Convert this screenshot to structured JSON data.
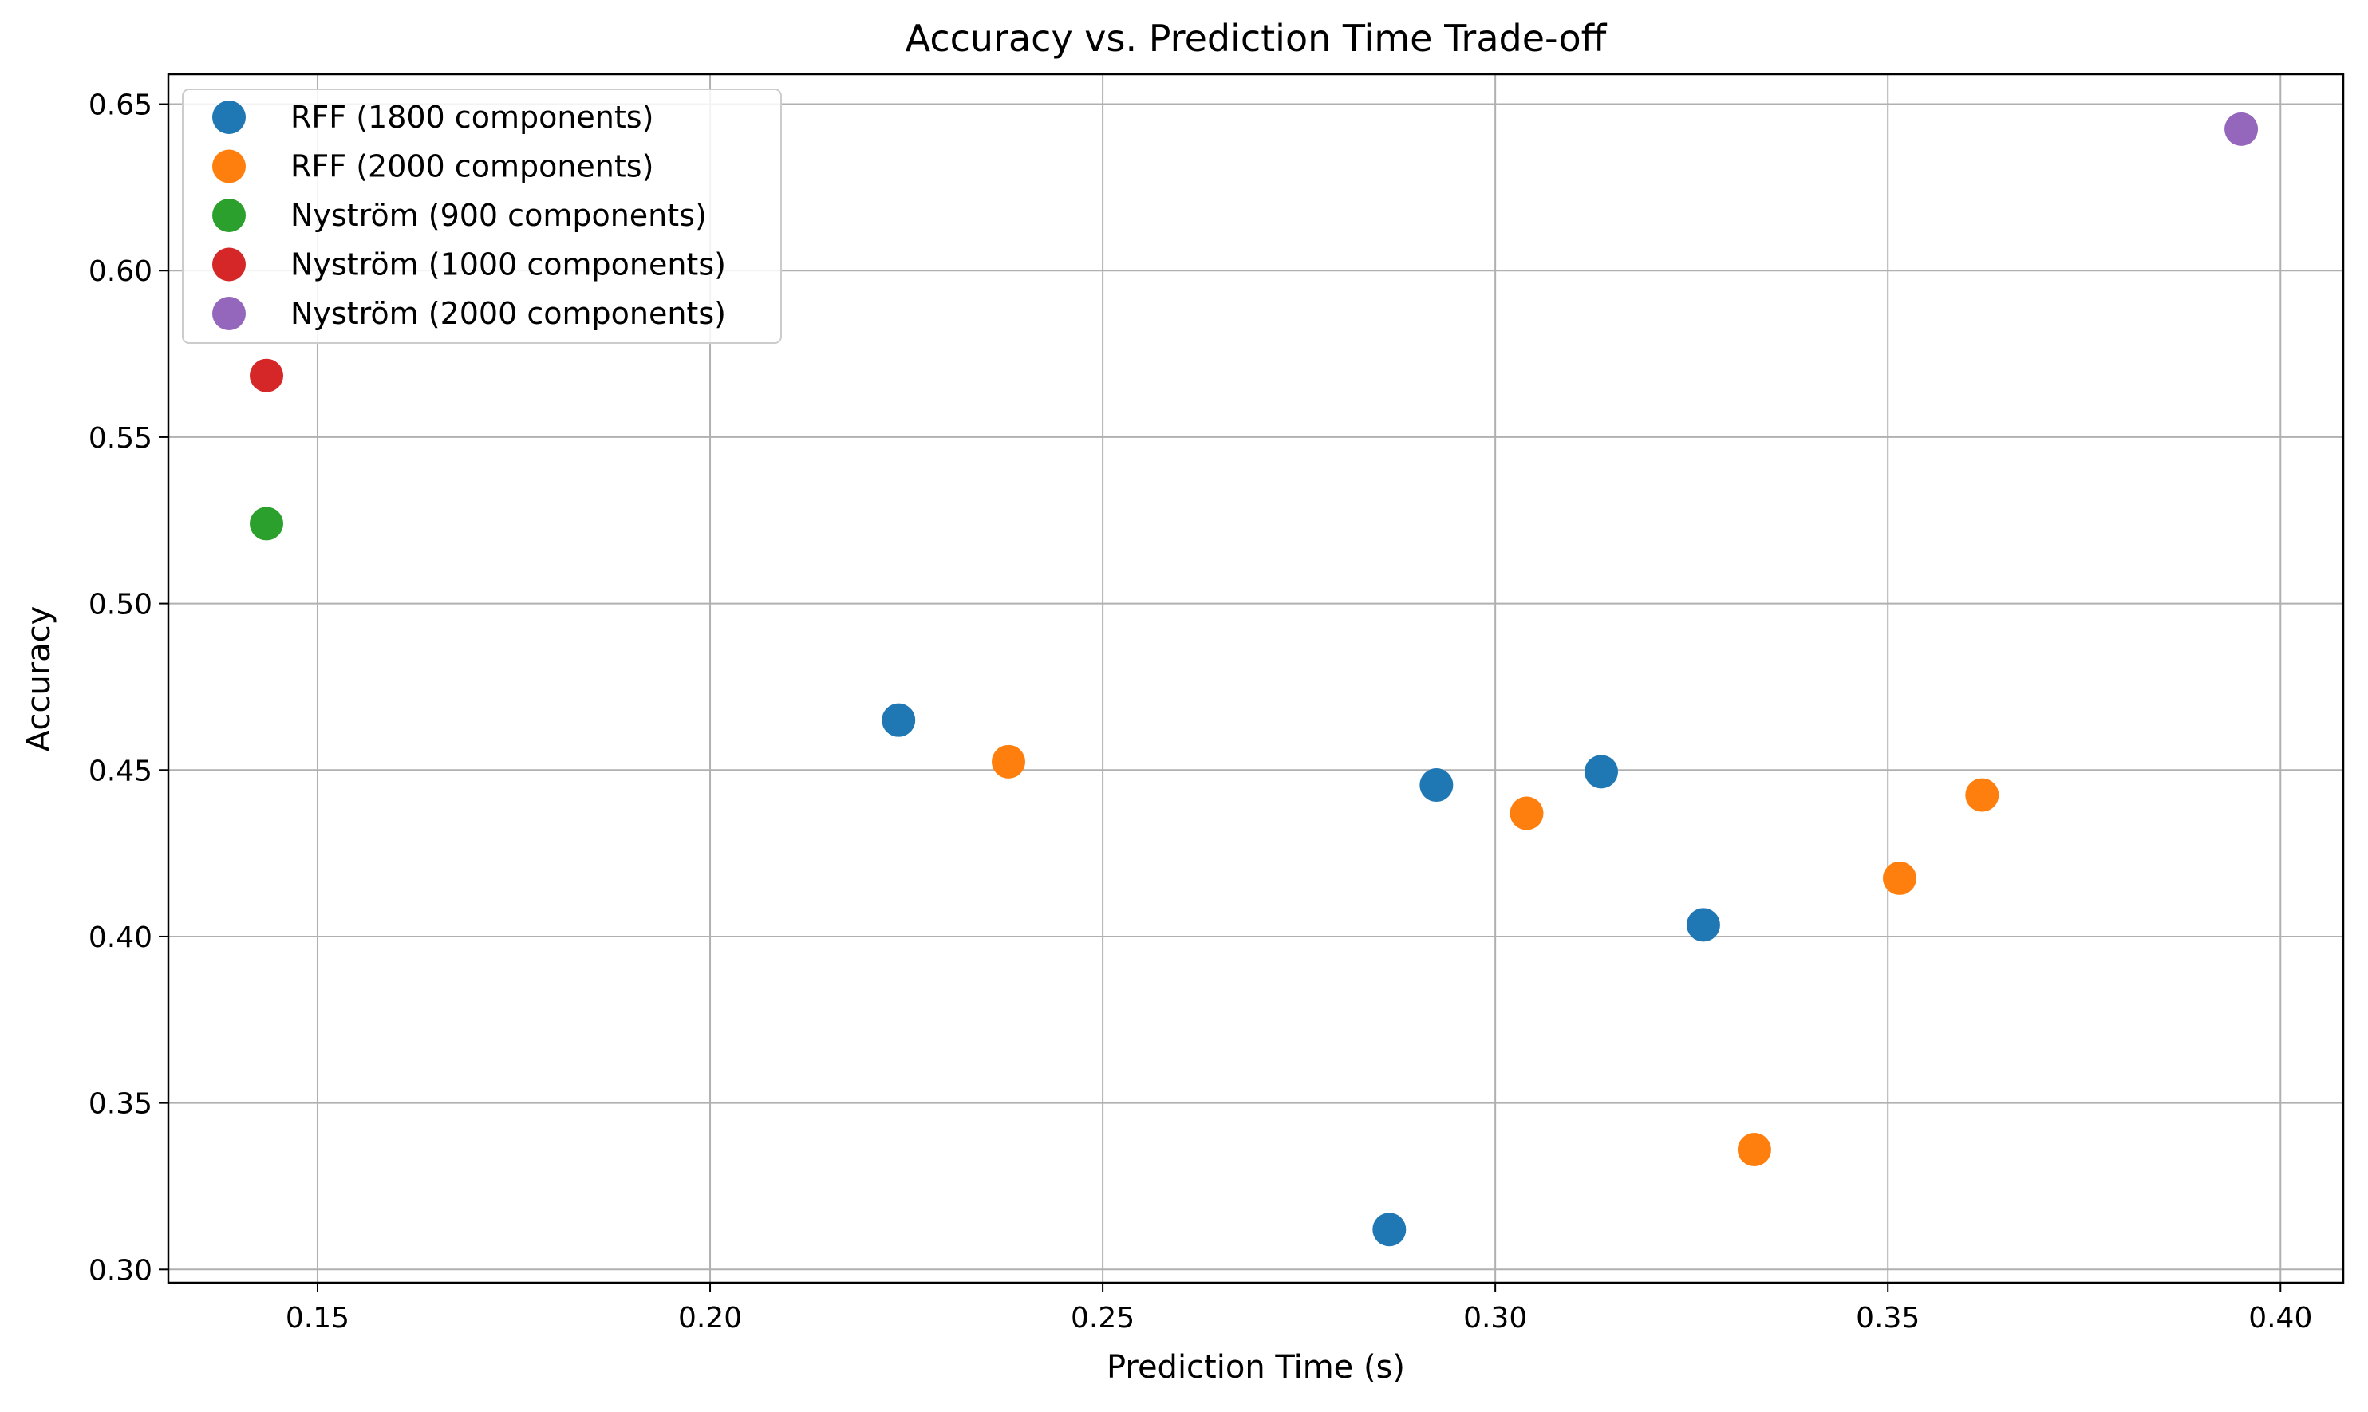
{
  "chart_data": {
    "type": "scatter",
    "title": "Accuracy vs. Prediction Time Trade-off",
    "xlabel": "Prediction Time (s)",
    "ylabel": "Accuracy",
    "xlim": [
      0.131,
      0.408
    ],
    "ylim": [
      0.296,
      0.659
    ],
    "xticks": [
      0.15,
      0.2,
      0.25,
      0.3,
      0.35,
      0.4
    ],
    "xtick_labels": [
      "0.15",
      "0.20",
      "0.25",
      "0.30",
      "0.35",
      "0.40"
    ],
    "yticks": [
      0.3,
      0.35,
      0.4,
      0.45,
      0.5,
      0.55,
      0.6,
      0.65
    ],
    "ytick_labels": [
      "0.30",
      "0.35",
      "0.40",
      "0.45",
      "0.50",
      "0.55",
      "0.60",
      "0.65"
    ],
    "grid": true,
    "legend_position": "top-left",
    "series": [
      {
        "name": "RFF (1800 components)",
        "color": "#1f77b4",
        "points": [
          {
            "x": 0.224,
            "y": 0.465
          },
          {
            "x": 0.2925,
            "y": 0.4455
          },
          {
            "x": 0.3135,
            "y": 0.4495
          },
          {
            "x": 0.3265,
            "y": 0.4035
          },
          {
            "x": 0.2865,
            "y": 0.312
          }
        ]
      },
      {
        "name": "RFF (2000 components)",
        "color": "#ff7f0e",
        "points": [
          {
            "x": 0.238,
            "y": 0.4525
          },
          {
            "x": 0.304,
            "y": 0.437
          },
          {
            "x": 0.3515,
            "y": 0.4175
          },
          {
            "x": 0.362,
            "y": 0.4425
          },
          {
            "x": 0.333,
            "y": 0.336
          }
        ]
      },
      {
        "name": "Nyström (900 components)",
        "color": "#2ca02c",
        "points": [
          {
            "x": 0.1435,
            "y": 0.524
          }
        ]
      },
      {
        "name": "Nyström (1000 components)",
        "color": "#d62728",
        "points": [
          {
            "x": 0.1435,
            "y": 0.5685
          }
        ]
      },
      {
        "name": "Nyström (2000 components)",
        "color": "#9467bd",
        "points": [
          {
            "x": 0.395,
            "y": 0.6425
          }
        ]
      }
    ]
  }
}
